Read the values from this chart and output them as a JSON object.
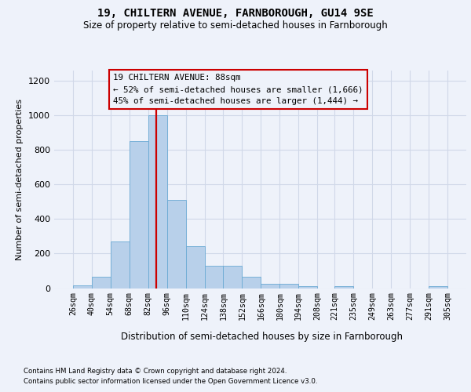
{
  "title": "19, CHILTERN AVENUE, FARNBOROUGH, GU14 9SE",
  "subtitle": "Size of property relative to semi-detached houses in Farnborough",
  "xlabel": "Distribution of semi-detached houses by size in Farnborough",
  "ylabel": "Number of semi-detached properties",
  "footer_line1": "Contains HM Land Registry data © Crown copyright and database right 2024.",
  "footer_line2": "Contains public sector information licensed under the Open Government Licence v3.0.",
  "annotation_title": "19 CHILTERN AVENUE: 88sqm",
  "annotation_line1": "← 52% of semi-detached houses are smaller (1,666)",
  "annotation_line2": "45% of semi-detached houses are larger (1,444) →",
  "property_size": 88,
  "bin_edges": [
    26,
    40,
    54,
    68,
    82,
    96,
    110,
    124,
    138,
    152,
    166,
    180,
    194,
    208,
    221,
    235,
    249,
    263,
    277,
    291,
    305
  ],
  "bar_heights": [
    18,
    65,
    270,
    850,
    1000,
    510,
    245,
    130,
    130,
    65,
    25,
    25,
    10,
    0,
    10,
    0,
    0,
    0,
    0,
    10
  ],
  "bar_color": "#b8d0ea",
  "bar_edgecolor": "#6aaad4",
  "redline_color": "#cc0000",
  "annotation_box_edgecolor": "#cc0000",
  "grid_color": "#d0d8e8",
  "background_color": "#eef2fa",
  "ylim": [
    0,
    1260
  ],
  "yticks": [
    0,
    200,
    400,
    600,
    800,
    1000,
    1200
  ]
}
